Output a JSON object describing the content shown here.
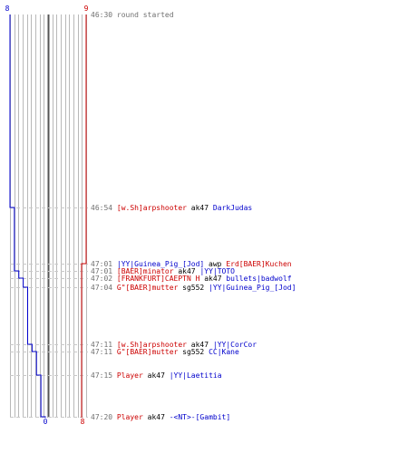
{
  "chart_data": {
    "type": "line",
    "top_labels": {
      "left": "8",
      "right": "9"
    },
    "bottom_labels": {
      "left": "0",
      "right": "8"
    },
    "colors": {
      "blue": "#0000cc",
      "red": "#cc0000",
      "grey": "#707070",
      "grid": "#b8b8b8",
      "dash": "#c8c8c8",
      "center": "#555555"
    },
    "events": [
      {
        "time": "46:30",
        "text": "round started",
        "kind": "start",
        "blue_score": 8,
        "red_score": 9
      },
      {
        "time": "46:54",
        "killer": "[w.Sh]arpshooter",
        "weapon": "ak47",
        "victim": "DarkJudas",
        "killer_team": "red",
        "victim_team": "blue",
        "blue_score": 7,
        "red_score": 9
      },
      {
        "time": "47:01",
        "killer": "|YY|Guinea_Pig_[Jod]",
        "weapon": "awp",
        "victim": "Erd[BAER]Kuchen",
        "killer_team": "blue",
        "victim_team": "red",
        "blue_score": 7,
        "red_score": 8
      },
      {
        "time": "47:01",
        "killer": "[BAER]minator",
        "weapon": "ak47",
        "victim": "|YY|TOTO",
        "killer_team": "red",
        "victim_team": "blue",
        "blue_score": 6,
        "red_score": 8
      },
      {
        "time": "47:02",
        "killer": "[FRANKFURT]CAEPTN H",
        "weapon": "ak47",
        "victim": "bullets|badwolf",
        "killer_team": "red",
        "victim_team": "blue",
        "blue_score": 5,
        "red_score": 8
      },
      {
        "time": "47:04",
        "killer": "G\"[BAER]mutter",
        "weapon": "sg552",
        "victim": "|YY|Guinea_Pig_[Jod]",
        "killer_team": "red",
        "victim_team": "blue",
        "blue_score": 4,
        "red_score": 8
      },
      {
        "time": "47:11",
        "killer": "[w.Sh]arpshooter",
        "weapon": "ak47",
        "victim": "|YY|CorCor",
        "killer_team": "red",
        "victim_team": "blue",
        "blue_score": 3,
        "red_score": 8
      },
      {
        "time": "47:11",
        "killer": "G\"[BAER]mutter",
        "weapon": "sg552",
        "victim": "CC|Kane",
        "killer_team": "red",
        "victim_team": "blue",
        "blue_score": 2,
        "red_score": 8
      },
      {
        "time": "47:15",
        "killer": "Player",
        "weapon": "ak47",
        "victim": "|YY|Laetitia",
        "killer_team": "red",
        "victim_team": "blue",
        "blue_score": 1,
        "red_score": 8
      },
      {
        "time": "47:20",
        "killer": "Player",
        "weapon": "ak47",
        "victim": "-<NT>-[Gambit]",
        "killer_team": "red",
        "victim_team": "blue",
        "blue_score": 0,
        "red_score": 8
      }
    ]
  }
}
